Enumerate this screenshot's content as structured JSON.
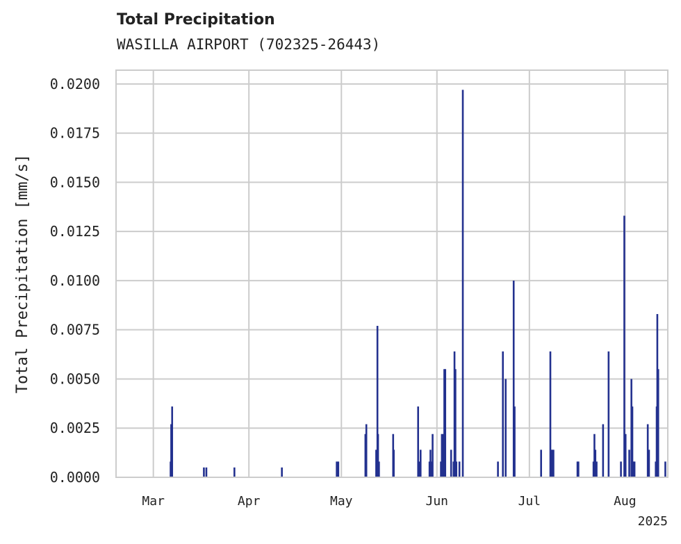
{
  "chart_data": {
    "type": "bar",
    "title": "Total Precipitation",
    "subtitle": "WASILLA AIRPORT (702325-26443)",
    "xlabel": "",
    "ylabel": "Total Precipitation [mm/s]",
    "ylim": [
      0,
      0.0207
    ],
    "y_ticks": [
      "0.0000",
      "0.0025",
      "0.0050",
      "0.0075",
      "0.0100",
      "0.0125",
      "0.0150",
      "0.0175",
      "0.0200"
    ],
    "x_ticks": [
      {
        "label": "Mar",
        "day": 0
      },
      {
        "label": "Apr",
        "day": 31
      },
      {
        "label": "May",
        "day": 61
      },
      {
        "label": "Jun",
        "day": 92
      },
      {
        "label": "Jul",
        "day": 122
      },
      {
        "label": "Aug",
        "day": 153
      }
    ],
    "x_range_days": [
      -12.1,
      166.9
    ],
    "year_label": "2025",
    "bar_color": "#23318f",
    "grid": true,
    "data": [
      [
        5.6,
        0.0008
      ],
      [
        5.8,
        0.0027
      ],
      [
        6.1,
        0.0036
      ],
      [
        16.4,
        0.0005
      ],
      [
        17.2,
        0.0005
      ],
      [
        26.3,
        0.0005
      ],
      [
        41.7,
        0.0005
      ],
      [
        59.5,
        0.0008
      ],
      [
        60.0,
        0.0008
      ],
      [
        68.8,
        0.0022
      ],
      [
        69.1,
        0.0027
      ],
      [
        72.3,
        0.0014
      ],
      [
        72.7,
        0.0077
      ],
      [
        72.9,
        0.0022
      ],
      [
        73.2,
        0.0008
      ],
      [
        77.8,
        0.0022
      ],
      [
        78.0,
        0.0014
      ],
      [
        85.9,
        0.0036
      ],
      [
        86.4,
        0.0008
      ],
      [
        86.7,
        0.0014
      ],
      [
        89.6,
        0.0008
      ],
      [
        89.9,
        0.0014
      ],
      [
        90.2,
        0.0008
      ],
      [
        90.6,
        0.0022
      ],
      [
        93.3,
        0.0008
      ],
      [
        93.6,
        0.0022
      ],
      [
        93.9,
        0.0022
      ],
      [
        94.2,
        0.0014
      ],
      [
        94.4,
        0.0055
      ],
      [
        94.7,
        0.0055
      ],
      [
        96.6,
        0.0014
      ],
      [
        97.4,
        0.0008
      ],
      [
        97.7,
        0.0064
      ],
      [
        98.0,
        0.0055
      ],
      [
        98.3,
        0.0008
      ],
      [
        99.3,
        0.0008
      ],
      [
        100.4,
        0.0197
      ],
      [
        111.8,
        0.0008
      ],
      [
        113.4,
        0.0064
      ],
      [
        114.3,
        0.005
      ],
      [
        116.9,
        0.01
      ],
      [
        117.2,
        0.0036
      ],
      [
        125.8,
        0.0014
      ],
      [
        128.8,
        0.0064
      ],
      [
        129.1,
        0.0014
      ],
      [
        129.5,
        0.0014
      ],
      [
        129.8,
        0.0014
      ],
      [
        137.6,
        0.0008
      ],
      [
        137.9,
        0.0008
      ],
      [
        142.8,
        0.0008
      ],
      [
        143.1,
        0.0022
      ],
      [
        143.4,
        0.0014
      ],
      [
        143.8,
        0.0008
      ],
      [
        145.9,
        0.0027
      ],
      [
        147.7,
        0.0064
      ],
      [
        151.7,
        0.0008
      ],
      [
        152.8,
        0.0133
      ],
      [
        153.2,
        0.0022
      ],
      [
        154.4,
        0.0014
      ],
      [
        155.1,
        0.005
      ],
      [
        155.4,
        0.0036
      ],
      [
        155.8,
        0.0008
      ],
      [
        156.1,
        0.0008
      ],
      [
        160.4,
        0.0027
      ],
      [
        160.8,
        0.0014
      ],
      [
        163.0,
        0.0008
      ],
      [
        163.3,
        0.0036
      ],
      [
        163.5,
        0.0083
      ],
      [
        163.8,
        0.0055
      ],
      [
        166.1,
        0.0008
      ]
    ]
  }
}
